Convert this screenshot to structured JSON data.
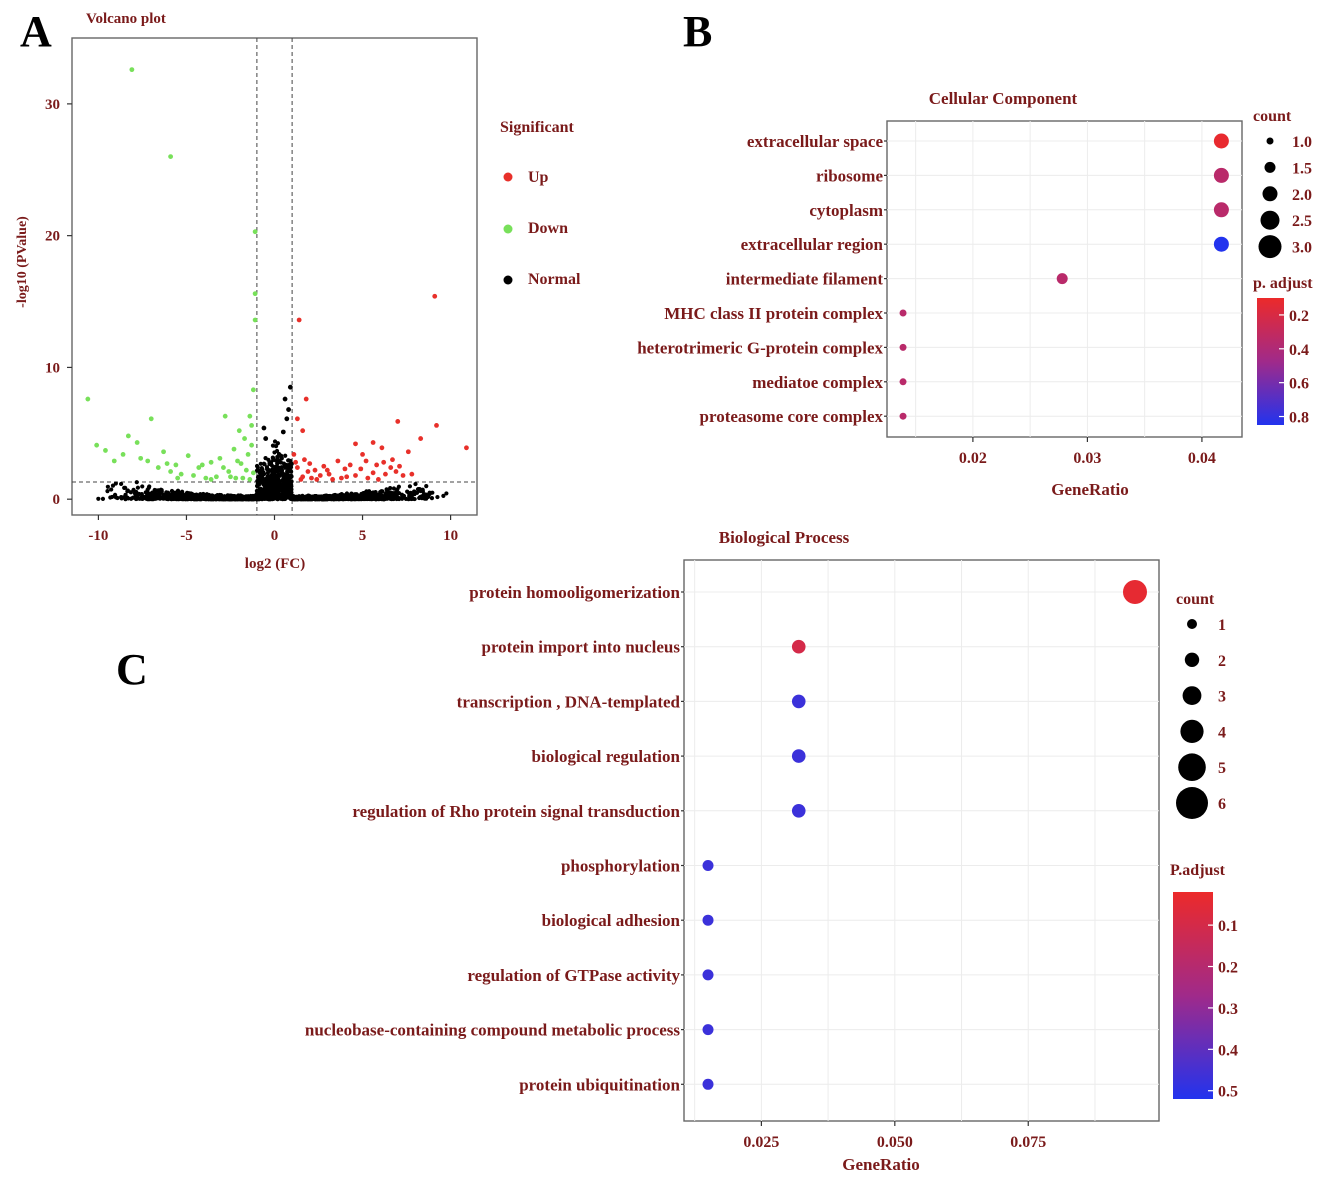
{
  "panels": {
    "a": "A",
    "b": "B",
    "c": "C"
  },
  "colors": {
    "up": "#e8302a",
    "down": "#78e05a",
    "normal": "#000000",
    "label": "#7a1a1a",
    "gradient_high": "#ec2a2a",
    "gradient_mid": "#a02a8a",
    "gradient_low": "#2233ee"
  },
  "chart_data": [
    {
      "id": "volcano",
      "type": "scatter",
      "title": "Volcano plot",
      "xlabel": "log2 (FC)",
      "ylabel": "-log10 (PValue)",
      "xlim": [
        -11.5,
        11.5
      ],
      "ylim": [
        -1.2,
        35
      ],
      "xticks": [
        -10,
        -5,
        0,
        5,
        10
      ],
      "yticks": [
        0,
        10,
        20,
        30
      ],
      "thresholds": {
        "x": [
          -1,
          1
        ],
        "y": 1.3
      },
      "grid": false,
      "legend": {
        "title": "Significant",
        "placement": "right",
        "items": [
          "Up",
          "Down",
          "Normal"
        ]
      },
      "series": [
        {
          "name": "Up",
          "points": [
            [
              9.1,
              15.4
            ],
            [
              1.4,
              13.6
            ],
            [
              9.2,
              5.6
            ],
            [
              10.9,
              3.9
            ],
            [
              7,
              5.9
            ],
            [
              8.3,
              4.6
            ],
            [
              1.8,
              7.6
            ],
            [
              1.3,
              6.1
            ],
            [
              1.6,
              5.2
            ],
            [
              4.6,
              4.2
            ],
            [
              5.6,
              4.3
            ],
            [
              6.1,
              3.9
            ],
            [
              7.6,
              3.6
            ],
            [
              3.6,
              2.9
            ],
            [
              4.3,
              2.6
            ],
            [
              2.3,
              2.2
            ],
            [
              2.8,
              2.5
            ],
            [
              5.2,
              2.9
            ],
            [
              5.8,
              2.6
            ],
            [
              6.6,
              2.4
            ],
            [
              6.9,
              2.1
            ],
            [
              7.1,
              2.5
            ],
            [
              3.1,
              1.9
            ],
            [
              1.6,
              1.7
            ],
            [
              2.6,
              1.8
            ],
            [
              4.1,
              1.7
            ],
            [
              4.6,
              1.8
            ],
            [
              5.3,
              1.6
            ],
            [
              6.3,
              1.9
            ],
            [
              1.2,
              2.8
            ],
            [
              1.3,
              2.4
            ],
            [
              1.9,
              2.1
            ],
            [
              2.1,
              1.6
            ],
            [
              3.3,
              1.5
            ],
            [
              3.8,
              1.6
            ],
            [
              1.5,
              1.5
            ],
            [
              2.4,
              1.5
            ],
            [
              4.9,
              2.3
            ],
            [
              5.6,
              2.0
            ],
            [
              6.2,
              2.8
            ],
            [
              1.1,
              3.4
            ],
            [
              1.7,
              3.0
            ],
            [
              2.0,
              2.7
            ],
            [
              3.0,
              2.2
            ],
            [
              7.3,
              1.8
            ],
            [
              7.8,
              1.9
            ],
            [
              6.7,
              3.0
            ],
            [
              5.0,
              3.4
            ],
            [
              4.0,
              2.3
            ],
            [
              5.9,
              1.5
            ]
          ]
        },
        {
          "name": "Down",
          "points": [
            [
              -8.1,
              32.6
            ],
            [
              -5.9,
              26
            ],
            [
              -1.1,
              20.3
            ],
            [
              -1.1,
              15.6
            ],
            [
              -1.1,
              13.6
            ],
            [
              -10.6,
              7.6
            ],
            [
              -7,
              6.1
            ],
            [
              -8.3,
              4.8
            ],
            [
              -10.1,
              4.1
            ],
            [
              -9.6,
              3.7
            ],
            [
              -1.2,
              8.3
            ],
            [
              -1.4,
              6.3
            ],
            [
              -2.8,
              6.3
            ],
            [
              -6.3,
              3.6
            ],
            [
              -7.8,
              4.3
            ],
            [
              -5.6,
              2.6
            ],
            [
              -4.3,
              2.4
            ],
            [
              -3.6,
              2.8
            ],
            [
              -3.1,
              3.1
            ],
            [
              -2.3,
              3.8
            ],
            [
              -2.1,
              2.9
            ],
            [
              -2.6,
              2.1
            ],
            [
              -1.9,
              2.7
            ],
            [
              -1.6,
              2.2
            ],
            [
              -1.5,
              3.4
            ],
            [
              -1.3,
              4.1
            ],
            [
              -1.2,
              2.0
            ],
            [
              -1.8,
              1.6
            ],
            [
              -2.5,
              1.7
            ],
            [
              -3.3,
              1.7
            ],
            [
              -3.9,
              1.6
            ],
            [
              -4.6,
              1.8
            ],
            [
              -5.3,
              1.9
            ],
            [
              -5.9,
              2.1
            ],
            [
              -6.6,
              2.4
            ],
            [
              -7.2,
              2.9
            ],
            [
              -8.6,
              3.4
            ],
            [
              -9.1,
              2.9
            ],
            [
              -4.9,
              3.3
            ],
            [
              -2.9,
              2.4
            ],
            [
              -1.4,
              1.5
            ],
            [
              -2.2,
              1.6
            ],
            [
              -3.6,
              1.5
            ],
            [
              -4.1,
              2.6
            ],
            [
              -6.1,
              2.7
            ],
            [
              -1.7,
              4.6
            ],
            [
              -2.0,
              5.2
            ],
            [
              -1.3,
              5.6
            ],
            [
              -5.5,
              1.6
            ],
            [
              -7.6,
              3.1
            ]
          ]
        },
        {
          "name": "Normal",
          "points": [
            [
              0.9,
              8.5
            ],
            [
              0.6,
              7.6
            ],
            [
              0.8,
              6.8
            ],
            [
              -0.6,
              5.4
            ],
            [
              0.7,
              6.1
            ],
            [
              -0.5,
              4.6
            ],
            [
              0.5,
              5.1
            ]
          ]
        }
      ]
    },
    {
      "id": "cellular_component",
      "type": "scatter",
      "title": "Cellular Component",
      "xlabel": "GeneRatio",
      "xlim": [
        0.0125,
        0.0435
      ],
      "xticks": [
        0.02,
        0.03,
        0.04
      ],
      "xtick_labels": [
        "0.02",
        "0.03",
        "0.04"
      ],
      "categories": [
        "extracellular space",
        "ribosome",
        "cytoplasm",
        "extracellular region",
        "intermediate filament",
        "MHC class II protein complex",
        "heterotrimeric G-protein complex",
        "mediatoe complex",
        "proteasome core complex"
      ],
      "gene_ratio": [
        0.0417,
        0.0417,
        0.0417,
        0.0417,
        0.0278,
        0.0139,
        0.0139,
        0.0139,
        0.0139
      ],
      "count": [
        3,
        3,
        3,
        3,
        2,
        1,
        1,
        1,
        1
      ],
      "p_adjust": [
        0.12,
        0.35,
        0.35,
        0.88,
        0.35,
        0.35,
        0.35,
        0.35,
        0.35
      ],
      "grid": true,
      "size_legend": {
        "title": "count",
        "items": [
          "1.0",
          "1.5",
          "2.0",
          "2.5",
          "3.0"
        ]
      },
      "color_legend": {
        "title": "p. adjust",
        "range": [
          0.1,
          0.85
        ],
        "labels": [
          "0.2",
          "0.4",
          "0.6",
          "0.8"
        ]
      }
    },
    {
      "id": "biological_process",
      "type": "scatter",
      "title": "Biological Process",
      "xlabel": "GeneRatio",
      "xlim": [
        0.0105,
        0.0995
      ],
      "xticks": [
        0.025,
        0.05,
        0.075
      ],
      "xtick_labels": [
        "0.025",
        "0.050",
        "0.075"
      ],
      "categories": [
        "protein homooligomerization",
        "protein import into nucleus",
        "transcription , DNA-templated",
        "biological regulation",
        "regulation of Rho protein signal transduction",
        "phosphorylation",
        "biological adhesion",
        "regulation of GTPase activity",
        "nucleobase-containing compound metabolic process",
        "protein ubiquitination"
      ],
      "gene_ratio": [
        0.095,
        0.032,
        0.032,
        0.032,
        0.032,
        0.015,
        0.015,
        0.015,
        0.015,
        0.015
      ],
      "count": [
        6,
        2,
        2,
        2,
        2,
        1,
        1,
        1,
        1,
        1
      ],
      "p_adjust": [
        0.04,
        0.1,
        0.47,
        0.47,
        0.47,
        0.47,
        0.47,
        0.47,
        0.47,
        0.47
      ],
      "grid": true,
      "size_legend": {
        "title": "count",
        "items": [
          "1",
          "2",
          "3",
          "4",
          "5",
          "6"
        ]
      },
      "color_legend": {
        "title": "P.adjust",
        "range": [
          0.02,
          0.52
        ],
        "labels": [
          "0.1",
          "0.2",
          "0.3",
          "0.4",
          "0.5"
        ]
      }
    }
  ]
}
